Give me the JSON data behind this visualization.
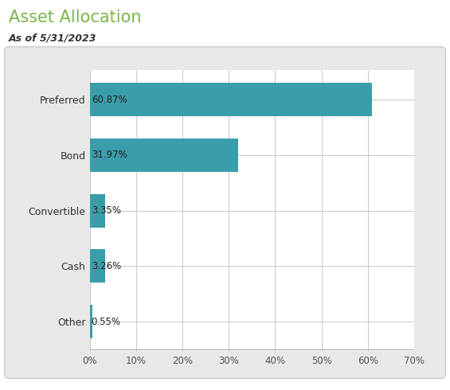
{
  "title": "Asset Allocation",
  "subtitle": "As of 5/31/2023",
  "title_color": "#7ab648",
  "subtitle_color": "#333333",
  "categories": [
    "Other",
    "Cash",
    "Convertible",
    "Bond",
    "Preferred"
  ],
  "values": [
    0.55,
    3.26,
    3.35,
    31.97,
    60.87
  ],
  "labels": [
    "0.55%",
    "3.26%",
    "3.35%",
    "31.97%",
    "60.87%"
  ],
  "bar_color": "#3a9daa",
  "background_color": "#ffffff",
  "chart_box_color": "#e8e8e8",
  "plot_bg_color": "#ffffff",
  "xlim": [
    0,
    70
  ],
  "xticks": [
    0,
    10,
    20,
    30,
    40,
    50,
    60,
    70
  ],
  "xtick_labels": [
    "0%",
    "10%",
    "20%",
    "30%",
    "40%",
    "50%",
    "60%",
    "70%"
  ],
  "grid_color": "#cccccc",
  "label_fontsize": 9,
  "tick_fontsize": 8.5,
  "title_fontsize": 15,
  "subtitle_fontsize": 9,
  "bar_label_fontsize": 8.5,
  "bar_height": 0.6
}
